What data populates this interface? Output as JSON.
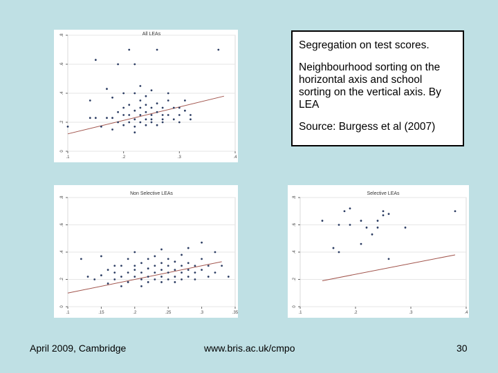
{
  "callout": {
    "line1": "Segregation on test scores.",
    "line2": "Neighbourhood sorting on the horizontal axis and school sorting on the vertical axis. By LEA",
    "line3": "Source: Burgess et al (2007)"
  },
  "footer": {
    "left": "April 2009, Cambridge",
    "center": "www.bris.ac.uk/cmpo",
    "page": "30"
  },
  "chart_data": [
    {
      "type": "scatter",
      "title": "All LEAs",
      "xlim": [
        0.1,
        0.4
      ],
      "ylim": [
        0,
        0.8
      ],
      "xticks": [
        ".1",
        ".2",
        ".3",
        ".4"
      ],
      "yticks": [
        "0",
        ".2",
        ".4",
        ".6",
        ".8"
      ],
      "fit_line": [
        [
          0.1,
          0.12
        ],
        [
          0.38,
          0.38
        ]
      ],
      "points": [
        [
          0.1,
          0.17
        ],
        [
          0.14,
          0.23
        ],
        [
          0.14,
          0.35
        ],
        [
          0.15,
          0.23
        ],
        [
          0.15,
          0.63
        ],
        [
          0.16,
          0.17
        ],
        [
          0.17,
          0.43
        ],
        [
          0.17,
          0.23
        ],
        [
          0.18,
          0.15
        ],
        [
          0.18,
          0.23
        ],
        [
          0.18,
          0.37
        ],
        [
          0.19,
          0.6
        ],
        [
          0.19,
          0.27
        ],
        [
          0.19,
          0.2
        ],
        [
          0.2,
          0.18
        ],
        [
          0.2,
          0.3
        ],
        [
          0.2,
          0.25
        ],
        [
          0.2,
          0.4
        ],
        [
          0.21,
          0.7
        ],
        [
          0.21,
          0.25
        ],
        [
          0.21,
          0.32
        ],
        [
          0.21,
          0.2
        ],
        [
          0.22,
          0.6
        ],
        [
          0.22,
          0.22
        ],
        [
          0.22,
          0.28
        ],
        [
          0.22,
          0.17
        ],
        [
          0.22,
          0.4
        ],
        [
          0.22,
          0.13
        ],
        [
          0.23,
          0.25
        ],
        [
          0.23,
          0.3
        ],
        [
          0.23,
          0.2
        ],
        [
          0.23,
          0.35
        ],
        [
          0.23,
          0.45
        ],
        [
          0.24,
          0.22
        ],
        [
          0.24,
          0.27
        ],
        [
          0.24,
          0.18
        ],
        [
          0.24,
          0.32
        ],
        [
          0.24,
          0.38
        ],
        [
          0.25,
          0.25
        ],
        [
          0.25,
          0.3
        ],
        [
          0.25,
          0.2
        ],
        [
          0.25,
          0.22
        ],
        [
          0.25,
          0.42
        ],
        [
          0.26,
          0.7
        ],
        [
          0.26,
          0.27
        ],
        [
          0.26,
          0.33
        ],
        [
          0.26,
          0.18
        ],
        [
          0.27,
          0.25
        ],
        [
          0.27,
          0.22
        ],
        [
          0.27,
          0.3
        ],
        [
          0.27,
          0.2
        ],
        [
          0.28,
          0.35
        ],
        [
          0.28,
          0.4
        ],
        [
          0.28,
          0.25
        ],
        [
          0.29,
          0.3
        ],
        [
          0.29,
          0.22
        ],
        [
          0.3,
          0.25
        ],
        [
          0.3,
          0.2
        ],
        [
          0.3,
          0.3
        ],
        [
          0.31,
          0.35
        ],
        [
          0.31,
          0.28
        ],
        [
          0.32,
          0.25
        ],
        [
          0.32,
          0.22
        ],
        [
          0.37,
          0.7
        ]
      ]
    },
    {
      "type": "scatter",
      "title": "Non Selective LEAs",
      "xlim": [
        0.1,
        0.35
      ],
      "ylim": [
        0,
        0.8
      ],
      "xticks": [
        ".1",
        ".15",
        ".2",
        ".25",
        ".3",
        ".35"
      ],
      "yticks": [
        "0",
        ".2",
        ".4",
        ".6",
        ".8"
      ],
      "fit_line": [
        [
          0.1,
          0.1
        ],
        [
          0.33,
          0.33
        ]
      ],
      "points": [
        [
          0.12,
          0.35
        ],
        [
          0.13,
          0.22
        ],
        [
          0.14,
          0.2
        ],
        [
          0.15,
          0.23
        ],
        [
          0.15,
          0.37
        ],
        [
          0.16,
          0.17
        ],
        [
          0.16,
          0.27
        ],
        [
          0.17,
          0.2
        ],
        [
          0.17,
          0.3
        ],
        [
          0.17,
          0.25
        ],
        [
          0.18,
          0.22
        ],
        [
          0.18,
          0.3
        ],
        [
          0.18,
          0.15
        ],
        [
          0.19,
          0.25
        ],
        [
          0.19,
          0.35
        ],
        [
          0.19,
          0.18
        ],
        [
          0.2,
          0.22
        ],
        [
          0.2,
          0.3
        ],
        [
          0.2,
          0.27
        ],
        [
          0.2,
          0.4
        ],
        [
          0.21,
          0.2
        ],
        [
          0.21,
          0.25
        ],
        [
          0.21,
          0.32
        ],
        [
          0.21,
          0.15
        ],
        [
          0.22,
          0.22
        ],
        [
          0.22,
          0.28
        ],
        [
          0.22,
          0.35
        ],
        [
          0.22,
          0.18
        ],
        [
          0.23,
          0.25
        ],
        [
          0.23,
          0.3
        ],
        [
          0.23,
          0.2
        ],
        [
          0.23,
          0.37
        ],
        [
          0.24,
          0.22
        ],
        [
          0.24,
          0.27
        ],
        [
          0.24,
          0.18
        ],
        [
          0.24,
          0.32
        ],
        [
          0.24,
          0.42
        ],
        [
          0.25,
          0.25
        ],
        [
          0.25,
          0.3
        ],
        [
          0.25,
          0.2
        ],
        [
          0.25,
          0.35
        ],
        [
          0.26,
          0.27
        ],
        [
          0.26,
          0.22
        ],
        [
          0.26,
          0.33
        ],
        [
          0.26,
          0.18
        ],
        [
          0.27,
          0.25
        ],
        [
          0.27,
          0.3
        ],
        [
          0.27,
          0.2
        ],
        [
          0.27,
          0.38
        ],
        [
          0.28,
          0.27
        ],
        [
          0.28,
          0.22
        ],
        [
          0.28,
          0.32
        ],
        [
          0.28,
          0.43
        ],
        [
          0.29,
          0.25
        ],
        [
          0.29,
          0.3
        ],
        [
          0.29,
          0.2
        ],
        [
          0.3,
          0.27
        ],
        [
          0.3,
          0.35
        ],
        [
          0.3,
          0.47
        ],
        [
          0.31,
          0.22
        ],
        [
          0.31,
          0.3
        ],
        [
          0.32,
          0.25
        ],
        [
          0.32,
          0.4
        ],
        [
          0.33,
          0.3
        ],
        [
          0.34,
          0.22
        ]
      ]
    },
    {
      "type": "scatter",
      "title": "Selective LEAs",
      "xlim": [
        0.1,
        0.4
      ],
      "ylim": [
        0,
        0.8
      ],
      "xticks": [
        ".1",
        ".2",
        ".3",
        ".4"
      ],
      "yticks": [
        "0",
        ".2",
        ".4",
        ".6",
        ".8"
      ],
      "fit_line": [
        [
          0.14,
          0.19
        ],
        [
          0.38,
          0.38
        ]
      ],
      "points": [
        [
          0.14,
          0.63
        ],
        [
          0.16,
          0.43
        ],
        [
          0.17,
          0.6
        ],
        [
          0.17,
          0.4
        ],
        [
          0.18,
          0.7
        ],
        [
          0.19,
          0.6
        ],
        [
          0.19,
          0.72
        ],
        [
          0.21,
          0.63
        ],
        [
          0.21,
          0.46
        ],
        [
          0.22,
          0.58
        ],
        [
          0.23,
          0.53
        ],
        [
          0.24,
          0.63
        ],
        [
          0.24,
          0.58
        ],
        [
          0.25,
          0.7
        ],
        [
          0.25,
          0.67
        ],
        [
          0.26,
          0.68
        ],
        [
          0.26,
          0.35
        ],
        [
          0.29,
          0.58
        ],
        [
          0.38,
          0.7
        ]
      ]
    }
  ]
}
